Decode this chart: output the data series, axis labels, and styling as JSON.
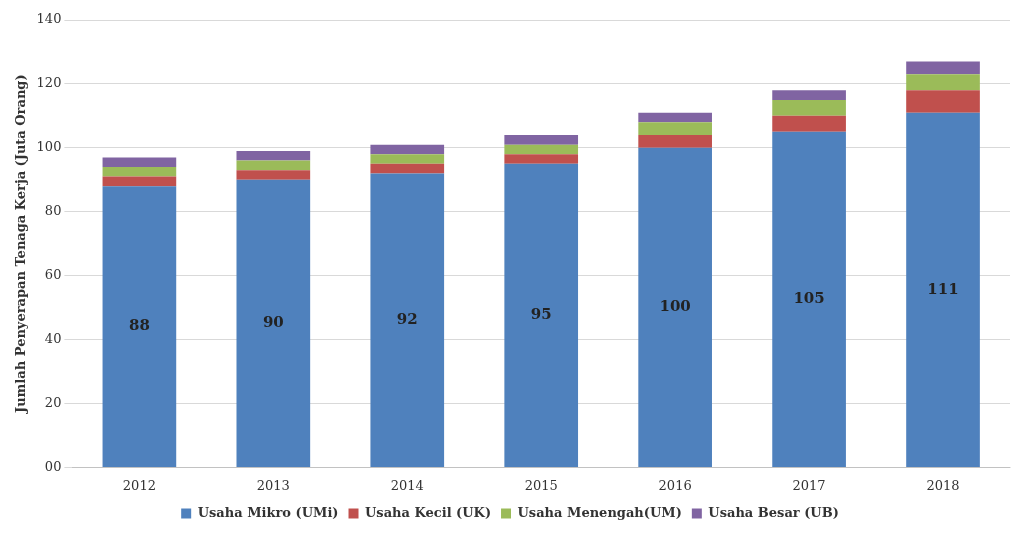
{
  "chart_data": {
    "type": "bar",
    "stacked": true,
    "ylabel": "Jumlah Penyerapan Tenaga Kerja (Juta Orang)",
    "categories": [
      "2012",
      "2013",
      "2014",
      "2015",
      "2016",
      "2017",
      "2018"
    ],
    "series": [
      {
        "name": "Usaha Mikro (UMi)",
        "color": "#4f81bd",
        "values": [
          88,
          90,
          92,
          95,
          100,
          105,
          111
        ],
        "value_labels": [
          "88",
          "90",
          "92",
          "95",
          "100",
          "105",
          "111"
        ]
      },
      {
        "name": "Usaha Kecil (UK)",
        "color": "#c0504d",
        "values": [
          3,
          3,
          3,
          3,
          4,
          5,
          7
        ]
      },
      {
        "name": "Usaha Menengah(UM)",
        "color": "#9bbb59",
        "values": [
          3,
          3,
          3,
          3,
          4,
          5,
          5
        ]
      },
      {
        "name": "Usaha Besar (UB)",
        "color": "#8064a2",
        "values": [
          3,
          3,
          3,
          3,
          3,
          3,
          4
        ]
      }
    ],
    "ylim": [
      0,
      140
    ],
    "yticks": [
      {
        "value": 0,
        "label": "00"
      },
      20,
      40,
      60,
      80,
      100,
      120,
      140
    ],
    "grid": "y",
    "legend": "bottom"
  }
}
